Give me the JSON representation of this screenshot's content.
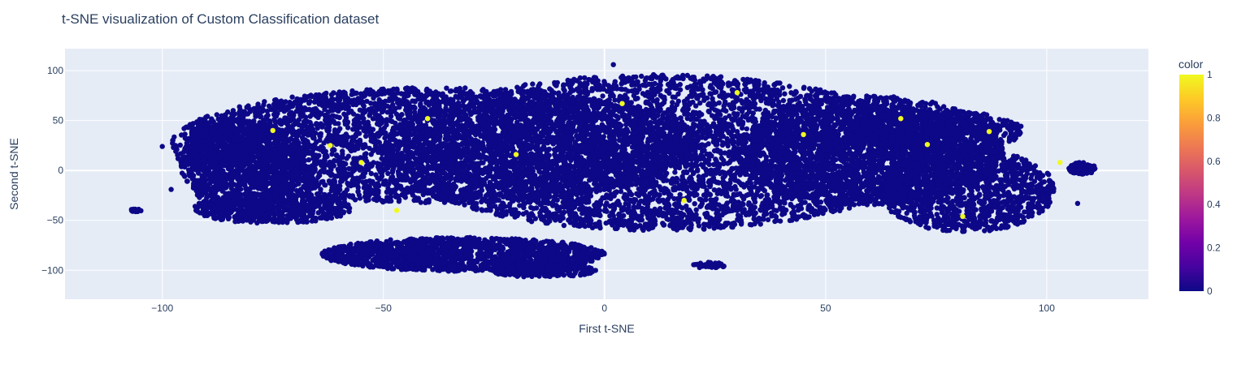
{
  "chart_data": {
    "type": "scatter",
    "title": "t-SNE visualization of Custom Classification dataset",
    "xlabel": "First t-SNE",
    "ylabel": "Second t-SNE",
    "xlim": [
      -122,
      123
    ],
    "ylim": [
      -129,
      122
    ],
    "x_ticks": [
      -100,
      -50,
      0,
      50,
      100
    ],
    "y_ticks": [
      -100,
      -50,
      0,
      50,
      100
    ],
    "x_tick_labels": [
      "−100",
      "−50",
      "0",
      "50",
      "100"
    ],
    "y_tick_labels": [
      "−100",
      "−50",
      "0",
      "50",
      "100"
    ],
    "grid": true,
    "plot_background": "#e5ecf6",
    "colorbar": {
      "title": "color",
      "range": [
        0,
        1
      ],
      "ticks": [
        0,
        0.2,
        0.4,
        0.6,
        0.8,
        1
      ],
      "tick_labels": [
        "0",
        "0.2",
        "0.4",
        "0.6",
        "0.8",
        "1"
      ],
      "colorscale": [
        "#0d0887",
        "#46039f",
        "#7201a8",
        "#9c179e",
        "#bd3786",
        "#d8576b",
        "#ed7953",
        "#fb9f3a",
        "#fdca26",
        "#f0f921"
      ]
    },
    "clusters": [
      {
        "cx": -38,
        "cy": 25,
        "rx": 60,
        "ry": 58,
        "n": 4200,
        "value": 0
      },
      {
        "cx": 12,
        "cy": 18,
        "rx": 62,
        "ry": 78,
        "n": 5200,
        "value": 0
      },
      {
        "cx": 60,
        "cy": 20,
        "rx": 30,
        "ry": 55,
        "n": 2200,
        "value": 0
      },
      {
        "cx": 82,
        "cy": -20,
        "rx": 20,
        "ry": 42,
        "n": 1200,
        "value": 0
      },
      {
        "cx": 75,
        "cy": 40,
        "rx": 20,
        "ry": 20,
        "n": 700,
        "value": 0
      },
      {
        "cx": -82,
        "cy": 5,
        "rx": 14,
        "ry": 45,
        "n": 900,
        "value": 0
      },
      {
        "cx": -87,
        "cy": 25,
        "rx": 8,
        "ry": 22,
        "n": 250,
        "value": 0
      },
      {
        "cx": -75,
        "cy": -38,
        "rx": 18,
        "ry": 15,
        "n": 600,
        "value": 0
      },
      {
        "cx": -32,
        "cy": -84,
        "rx": 32,
        "ry": 17,
        "n": 1600,
        "value": 0
      },
      {
        "cx": -14,
        "cy": -100,
        "rx": 12,
        "ry": 7,
        "n": 280,
        "value": 0
      },
      {
        "cx": 108,
        "cy": 2,
        "rx": 3,
        "ry": 6,
        "n": 150,
        "value": 0
      },
      {
        "cx": -106,
        "cy": -40,
        "rx": 2,
        "ry": 1.5,
        "n": 16,
        "value": 0
      },
      {
        "cx": 24,
        "cy": -95,
        "rx": 4,
        "ry": 3,
        "n": 40,
        "value": 0
      }
    ],
    "highlighted_points": [
      {
        "x": -75,
        "y": 40,
        "value": 1
      },
      {
        "x": -62,
        "y": 25,
        "value": 1
      },
      {
        "x": -55,
        "y": 8,
        "value": 1
      },
      {
        "x": -47,
        "y": -40,
        "value": 1
      },
      {
        "x": -40,
        "y": 52,
        "value": 1
      },
      {
        "x": 4,
        "y": 67,
        "value": 1
      },
      {
        "x": 30,
        "y": 78,
        "value": 1
      },
      {
        "x": 45,
        "y": 36,
        "value": 1
      },
      {
        "x": 67,
        "y": 52,
        "value": 1
      },
      {
        "x": 73,
        "y": 26,
        "value": 1
      },
      {
        "x": 81,
        "y": -46,
        "value": 1
      },
      {
        "x": 87,
        "y": 39,
        "value": 1
      },
      {
        "x": 103,
        "y": 8,
        "value": 1
      },
      {
        "x": 18,
        "y": -30,
        "value": 1
      },
      {
        "x": -20,
        "y": 16,
        "value": 1
      }
    ],
    "outlier_points": [
      {
        "x": 2,
        "y": 106,
        "value": 0
      },
      {
        "x": -100,
        "y": 24,
        "value": 0
      },
      {
        "x": -97,
        "y": 25,
        "value": 0
      },
      {
        "x": -98,
        "y": -19,
        "value": 0
      },
      {
        "x": 107,
        "y": -33,
        "value": 0
      },
      {
        "x": -10,
        "y": -94,
        "value": 0
      }
    ]
  }
}
